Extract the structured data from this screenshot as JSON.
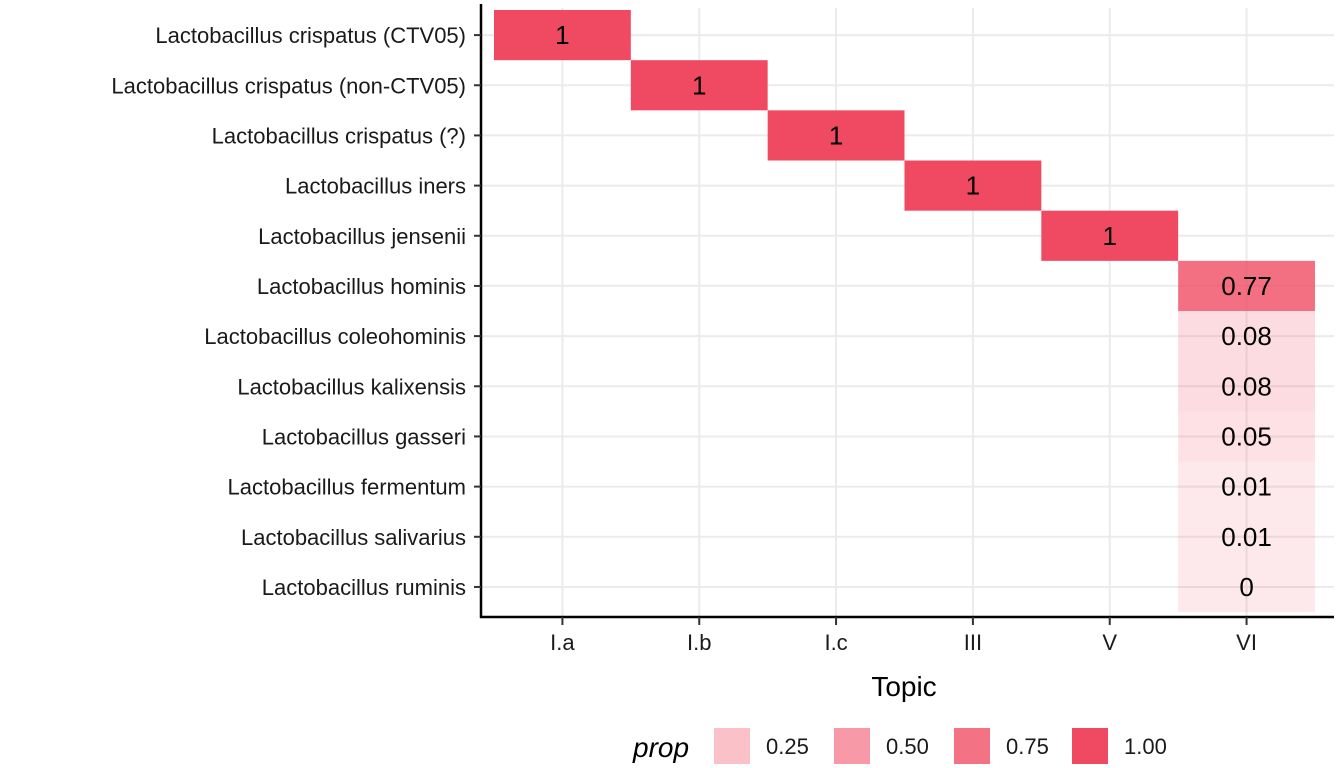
{
  "chart_data": {
    "type": "heatmap",
    "xlabel": "Topic",
    "x_categories": [
      "I.a",
      "I.b",
      "I.c",
      "III",
      "V",
      "VI"
    ],
    "y_categories": [
      "Lactobacillus crispatus (CTV05)",
      "Lactobacillus crispatus (non-CTV05)",
      "Lactobacillus crispatus (?)",
      "Lactobacillus iners",
      "Lactobacillus jensenii",
      "Lactobacillus hominis",
      "Lactobacillus coleohominis",
      "Lactobacillus kalixensis",
      "Lactobacillus gasseri",
      "Lactobacillus fermentum",
      "Lactobacillus salivarius",
      "Lactobacillus ruminis"
    ],
    "cells": [
      {
        "x": "I.a",
        "y": "Lactobacillus crispatus (CTV05)",
        "value": 1,
        "label": "1"
      },
      {
        "x": "I.b",
        "y": "Lactobacillus crispatus (non-CTV05)",
        "value": 1,
        "label": "1"
      },
      {
        "x": "I.c",
        "y": "Lactobacillus crispatus (?)",
        "value": 1,
        "label": "1"
      },
      {
        "x": "III",
        "y": "Lactobacillus iners",
        "value": 1,
        "label": "1"
      },
      {
        "x": "V",
        "y": "Lactobacillus jensenii",
        "value": 1,
        "label": "1"
      },
      {
        "x": "VI",
        "y": "Lactobacillus hominis",
        "value": 0.77,
        "label": "0.77"
      },
      {
        "x": "VI",
        "y": "Lactobacillus coleohominis",
        "value": 0.08,
        "label": "0.08"
      },
      {
        "x": "VI",
        "y": "Lactobacillus kalixensis",
        "value": 0.08,
        "label": "0.08"
      },
      {
        "x": "VI",
        "y": "Lactobacillus gasseri",
        "value": 0.05,
        "label": "0.05"
      },
      {
        "x": "VI",
        "y": "Lactobacillus fermentum",
        "value": 0.01,
        "label": "0.01"
      },
      {
        "x": "VI",
        "y": "Lactobacillus salivarius",
        "value": 0.01,
        "label": "0.01"
      },
      {
        "x": "VI",
        "y": "Lactobacillus ruminis",
        "value": 0,
        "label": "0"
      }
    ],
    "fill_color": "#f04a62",
    "grid": true,
    "legend": {
      "title": "prop",
      "position": "bottom",
      "entries": [
        {
          "label": "0.25",
          "value": 0.25
        },
        {
          "label": "0.50",
          "value": 0.5
        },
        {
          "label": "0.75",
          "value": 0.75
        },
        {
          "label": "1.00",
          "value": 1.0
        }
      ]
    }
  }
}
